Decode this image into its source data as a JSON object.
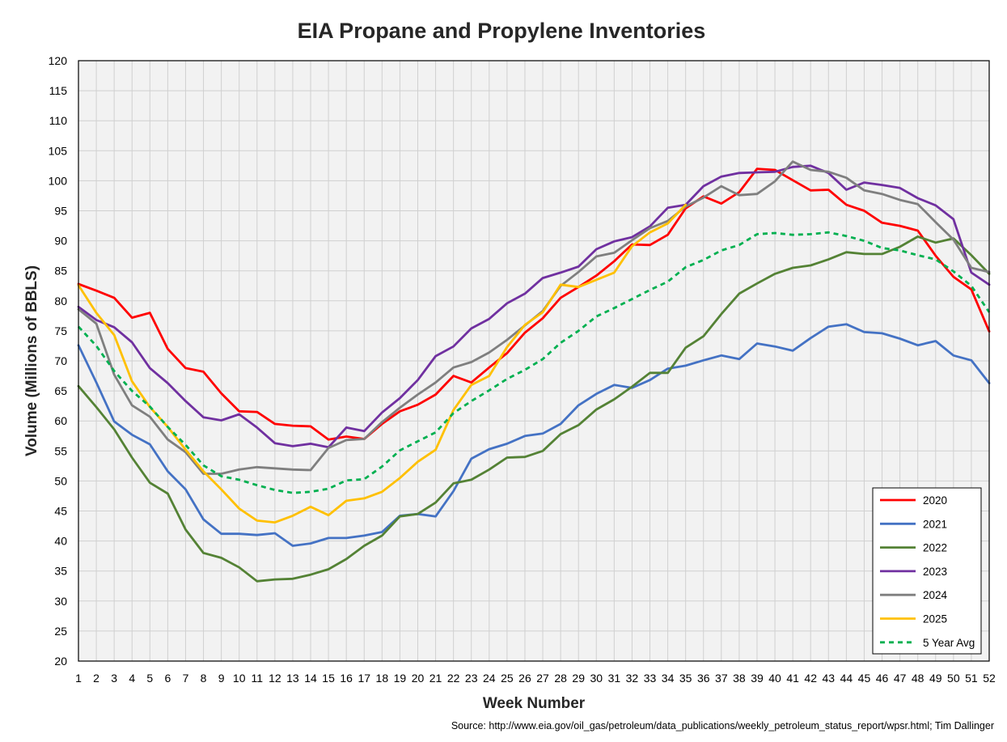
{
  "chart_data": {
    "type": "line",
    "title": "EIA Propane and Propylene Inventories",
    "xlabel": "Week Number",
    "ylabel": "Volume (Millions of BBLS)",
    "source": "Source: http://www.eia.gov/oil_gas/petroleum/data_publications/weekly_petroleum_status_report/wpsr.html; Tim Dallinger",
    "xlim": [
      1,
      52
    ],
    "ylim": [
      20,
      120
    ],
    "y_step": 5,
    "grid": true,
    "legend_position": "bottom-right",
    "x": [
      1,
      2,
      3,
      4,
      5,
      6,
      7,
      8,
      9,
      10,
      11,
      12,
      13,
      14,
      15,
      16,
      17,
      18,
      19,
      20,
      21,
      22,
      23,
      24,
      25,
      26,
      27,
      28,
      29,
      30,
      31,
      32,
      33,
      34,
      35,
      36,
      37,
      38,
      39,
      40,
      41,
      42,
      43,
      44,
      45,
      46,
      47,
      48,
      49,
      50,
      51,
      52
    ],
    "series": [
      {
        "name": "2020",
        "color": "#ff0000",
        "dashed": false,
        "values": [
          82.8,
          81.7,
          80.5,
          77.2,
          78.0,
          72.0,
          68.8,
          68.2,
          64.6,
          61.6,
          61.5,
          59.5,
          59.2,
          59.1,
          56.9,
          57.4,
          57.0,
          59.5,
          61.6,
          62.7,
          64.4,
          67.5,
          66.4,
          68.9,
          71.3,
          74.7,
          77.1,
          80.5,
          82.3,
          84.2,
          86.6,
          89.4,
          89.3,
          91.0,
          95.4,
          97.4,
          96.2,
          98.1,
          102.0,
          101.8,
          100.1,
          98.4,
          98.5,
          96.0,
          95.0,
          93.0,
          92.5,
          91.7,
          87.5,
          84.0,
          81.9,
          74.9
        ]
      },
      {
        "name": "2021",
        "color": "#4472c4",
        "dashed": false,
        "values": [
          72.6,
          66.4,
          59.9,
          57.7,
          56.1,
          51.6,
          48.6,
          43.6,
          41.2,
          41.2,
          41.0,
          41.3,
          39.2,
          39.6,
          40.5,
          40.5,
          40.9,
          41.5,
          44.2,
          44.5,
          44.1,
          48.3,
          53.7,
          55.3,
          56.2,
          57.5,
          57.9,
          59.5,
          62.6,
          64.5,
          66.0,
          65.5,
          66.8,
          68.7,
          69.2,
          70.1,
          70.9,
          70.3,
          72.9,
          72.4,
          71.7,
          73.8,
          75.7,
          76.1,
          74.8,
          74.6,
          73.7,
          72.6,
          73.3,
          70.9,
          70.1,
          66.3
        ]
      },
      {
        "name": "2022",
        "color": "#548235",
        "dashed": false,
        "values": [
          65.8,
          62.3,
          58.6,
          53.9,
          49.7,
          47.9,
          41.9,
          38.0,
          37.2,
          35.6,
          33.3,
          33.6,
          33.7,
          34.4,
          35.3,
          37.0,
          39.2,
          40.9,
          44.1,
          44.5,
          46.4,
          49.6,
          50.2,
          51.9,
          53.9,
          54.0,
          55.0,
          57.8,
          59.3,
          61.9,
          63.6,
          65.7,
          68.0,
          68.0,
          72.2,
          74.1,
          77.8,
          81.2,
          82.9,
          84.5,
          85.5,
          85.9,
          86.9,
          88.1,
          87.8,
          87.8,
          89.0,
          90.7,
          89.7,
          90.4,
          87.6,
          84.5
        ]
      },
      {
        "name": "2023",
        "color": "#7030a0",
        "dashed": false,
        "values": [
          79.0,
          76.8,
          75.6,
          73.1,
          68.8,
          66.3,
          63.3,
          60.6,
          60.1,
          61.1,
          58.9,
          56.3,
          55.8,
          56.2,
          55.6,
          58.9,
          58.3,
          61.4,
          63.8,
          66.8,
          70.8,
          72.4,
          75.4,
          77.0,
          79.6,
          81.2,
          83.8,
          84.7,
          85.7,
          88.6,
          89.9,
          90.6,
          92.4,
          95.5,
          96.0,
          99.1,
          100.7,
          101.3,
          101.4,
          101.5,
          102.3,
          102.5,
          101.3,
          98.5,
          99.7,
          99.3,
          98.8,
          97.1,
          95.9,
          93.6,
          84.7,
          82.7
        ]
      },
      {
        "name": "2024",
        "color": "#7f7f7f",
        "dashed": false,
        "values": [
          78.6,
          76.2,
          67.7,
          62.6,
          60.7,
          56.9,
          54.8,
          51.2,
          51.2,
          51.9,
          52.3,
          52.1,
          51.9,
          51.8,
          55.5,
          56.8,
          57.0,
          59.8,
          62.2,
          64.4,
          66.4,
          68.9,
          69.8,
          71.4,
          73.5,
          75.9,
          78.3,
          82.5,
          84.8,
          87.4,
          88.0,
          90.1,
          92.1,
          93.3,
          95.7,
          97.2,
          99.1,
          97.6,
          97.8,
          99.9,
          103.2,
          101.8,
          101.5,
          100.5,
          98.4,
          97.8,
          96.8,
          96.1,
          93.1,
          90.2,
          85.5,
          84.8
        ]
      },
      {
        "name": "2025",
        "color": "#ffc000",
        "dashed": false,
        "values": [
          82.6,
          78.0,
          74.3,
          66.6,
          62.3,
          59.0,
          55.2,
          51.6,
          48.6,
          45.4,
          43.4,
          43.1,
          44.2,
          45.7,
          44.3,
          46.7,
          47.1,
          48.2,
          50.5,
          53.2,
          55.2,
          61.8,
          66.0,
          67.5,
          72.3,
          76.0,
          78.1,
          82.7,
          82.3,
          83.5,
          84.7,
          89.1,
          91.4,
          92.9,
          96.0,
          null,
          null,
          null,
          null,
          null,
          null,
          null,
          null,
          null,
          null,
          null,
          null,
          null,
          null,
          null,
          null,
          null
        ]
      },
      {
        "name": "5 Year Avg",
        "color": "#00b050",
        "dashed": true,
        "values": [
          75.7,
          72.5,
          68.3,
          65.0,
          62.4,
          59.0,
          56.0,
          52.6,
          50.8,
          50.2,
          49.3,
          48.5,
          48.0,
          48.2,
          48.7,
          50.1,
          50.3,
          52.4,
          55.1,
          56.6,
          58.1,
          61.3,
          63.3,
          65.1,
          67.0,
          68.5,
          70.3,
          73.0,
          75.0,
          77.4,
          78.8,
          80.3,
          81.8,
          83.2,
          85.6,
          86.8,
          88.4,
          89.3,
          91.1,
          91.3,
          91.0,
          91.1,
          91.4,
          90.8,
          90.0,
          88.8,
          88.4,
          87.6,
          86.9,
          84.9,
          82.5,
          78.1
        ]
      }
    ]
  }
}
